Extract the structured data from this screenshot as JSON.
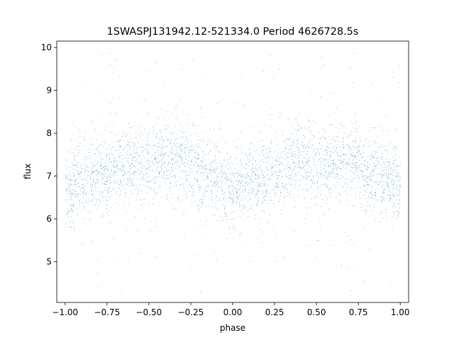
{
  "chart_data": {
    "type": "scatter",
    "title": "1SWASPJ131942.12-521334.0 Period 4626728.5s",
    "xlabel": "phase",
    "ylabel": "flux",
    "xlim": [
      -1.05,
      1.05
    ],
    "ylim": [
      4.05,
      10.15
    ],
    "xticks": [
      -1.0,
      -0.75,
      -0.5,
      -0.25,
      0.0,
      0.25,
      0.5,
      0.75,
      1.0
    ],
    "xtick_labels": [
      "−1.00",
      "−0.75",
      "−0.50",
      "−0.25",
      "0.00",
      "0.25",
      "0.50",
      "0.75",
      "1.00"
    ],
    "yticks": [
      5,
      6,
      7,
      8,
      9,
      10
    ],
    "ytick_labels": [
      "5",
      "6",
      "7",
      "8",
      "9",
      "10"
    ],
    "grid": false,
    "marker_color": "#1f77b4",
    "phase_range": [
      -1.0,
      1.0
    ],
    "period_structure": 1.0,
    "flux_profile": {
      "phase": [
        0.0,
        0.05,
        0.1,
        0.15,
        0.2,
        0.25,
        0.3,
        0.35,
        0.4,
        0.45,
        0.5,
        0.55,
        0.6,
        0.65,
        0.7,
        0.75,
        0.8,
        0.85,
        0.9,
        0.95,
        1.0
      ],
      "median_flux": [
        6.7,
        6.8,
        6.9,
        6.95,
        7.0,
        7.05,
        7.2,
        7.3,
        7.35,
        7.3,
        7.25,
        7.3,
        7.35,
        7.4,
        7.35,
        7.3,
        7.1,
        7.0,
        6.95,
        6.85,
        6.7
      ],
      "scatter": 0.45
    }
  }
}
